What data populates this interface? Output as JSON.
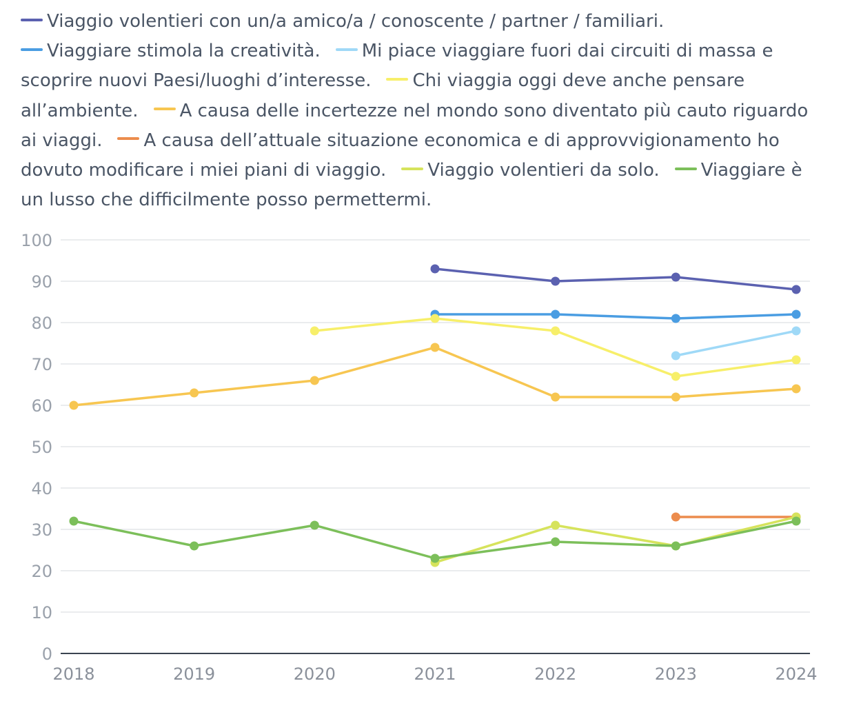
{
  "chart_data": {
    "type": "line",
    "x": [
      "2018",
      "2019",
      "2020",
      "2021",
      "2022",
      "2023",
      "2024"
    ],
    "ylim": [
      0,
      100
    ],
    "yticks": [
      0,
      10,
      20,
      30,
      40,
      50,
      60,
      70,
      80,
      90,
      100
    ],
    "grid": true,
    "legend_position": "top",
    "series": [
      {
        "name": "Viaggio volentieri con un/a amico/a / conoscente / partner / familiari.",
        "color": "#5b61b0",
        "values": [
          null,
          null,
          null,
          93,
          90,
          91,
          88
        ]
      },
      {
        "name": "Viaggiare stimola la creatività.",
        "color": "#4a9de2",
        "values": [
          null,
          null,
          null,
          82,
          82,
          81,
          82
        ]
      },
      {
        "name": "Mi piace viaggiare fuori dai circuiti di massa e scoprire nuovi Paesi/luoghi d’interesse.",
        "color": "#9fd9f7",
        "values": [
          null,
          null,
          null,
          null,
          null,
          72,
          78
        ]
      },
      {
        "name": "Chi viaggia oggi deve anche pensare all’ambiente.",
        "color": "#f7ef6a",
        "values": [
          null,
          null,
          78,
          81,
          78,
          67,
          71
        ]
      },
      {
        "name": "A causa delle incertezze nel mondo sono diventato più cauto riguardo ai viaggi.",
        "color": "#f7c651",
        "values": [
          60,
          63,
          66,
          74,
          62,
          62,
          64
        ]
      },
      {
        "name": "A causa dell’attuale situazione economica e di approvvigionamento ho dovuto modificare i miei piani di viaggio.",
        "color": "#ec8c4d",
        "values": [
          null,
          null,
          null,
          null,
          null,
          33,
          33
        ]
      },
      {
        "name": "Viaggio volentieri da solo.",
        "color": "#d6e35c",
        "values": [
          null,
          null,
          null,
          22,
          31,
          26,
          33
        ]
      },
      {
        "name": "Viaggiare è un lusso che difficilmente posso permettermi.",
        "color": "#7cbf5a",
        "values": [
          32,
          26,
          31,
          23,
          27,
          26,
          32
        ]
      }
    ]
  }
}
